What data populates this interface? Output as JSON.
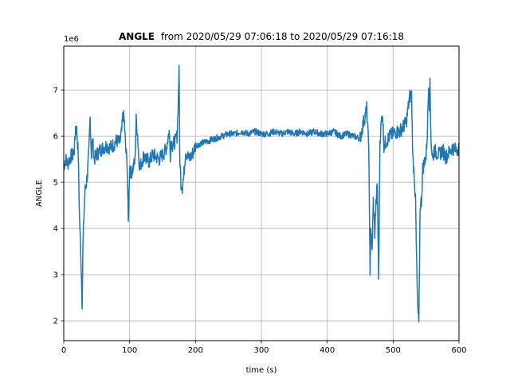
{
  "chart_data": {
    "type": "line",
    "title": {
      "bold": "ANGLE",
      "rest": "from 2020/05/29 07:06:18 to 2020/05/29 07:16:18"
    },
    "xlabel": "time (s)",
    "ylabel": "ANGLE",
    "offset_label": "1e6",
    "xlim": [
      0,
      600
    ],
    "ylim": [
      1.57,
      7.95
    ],
    "x_ticks": [
      0,
      100,
      200,
      300,
      400,
      500,
      600
    ],
    "x_tick_labels": [
      "0",
      "100",
      "200",
      "300",
      "400",
      "500",
      "600"
    ],
    "y_ticks": [
      2,
      3,
      4,
      5,
      6,
      7
    ],
    "y_tick_labels": [
      "2",
      "3",
      "4",
      "5",
      "6",
      "7"
    ],
    "grid": true,
    "series": [
      {
        "color": "#1f77b4",
        "x": [
          0,
          3,
          6,
          10,
          14,
          16,
          18,
          20,
          22,
          24,
          26,
          27,
          28,
          29,
          30,
          31,
          32,
          34,
          36,
          38,
          40,
          42,
          43,
          44,
          46,
          48,
          50,
          55,
          60,
          65,
          70,
          75,
          80,
          85,
          88,
          90,
          92,
          94,
          96,
          98,
          100,
          102,
          105,
          108,
          110,
          112,
          114,
          116,
          118,
          120,
          122,
          125,
          130,
          135,
          140,
          145,
          150,
          155,
          160,
          162,
          163,
          165,
          167,
          170,
          172,
          174,
          175,
          176,
          178,
          180,
          182,
          185,
          190,
          195,
          200,
          210,
          220,
          230,
          240,
          250,
          260,
          270,
          280,
          290,
          300,
          310,
          320,
          330,
          340,
          350,
          360,
          370,
          380,
          390,
          400,
          410,
          420,
          430,
          440,
          450,
          455,
          460,
          462,
          463,
          464,
          465,
          466,
          468,
          470,
          472,
          474,
          476,
          478,
          480,
          482,
          484,
          486,
          488,
          490,
          495,
          500,
          505,
          510,
          515,
          520,
          525,
          528,
          530,
          532,
          534,
          535,
          537,
          539,
          541,
          543,
          545,
          547,
          548,
          550,
          552,
          554,
          555,
          556,
          557,
          558,
          560,
          562,
          565,
          570,
          575,
          580,
          585,
          590,
          595,
          600
        ],
        "values": [
          5.35,
          5.5,
          5.4,
          5.55,
          5.6,
          5.7,
          6.2,
          6.1,
          5.6,
          4.2,
          3.4,
          2.9,
          2.4,
          3.5,
          4.0,
          4.4,
          4.8,
          4.95,
          5.2,
          5.6,
          6.4,
          5.6,
          5.8,
          5.9,
          5.5,
          5.55,
          5.6,
          5.7,
          5.75,
          5.8,
          5.75,
          5.8,
          5.9,
          5.85,
          6.1,
          6.5,
          6.3,
          5.7,
          5.5,
          4.1,
          5.4,
          5.2,
          5.3,
          5.45,
          6.35,
          6.05,
          5.5,
          5.3,
          5.45,
          5.5,
          5.6,
          5.5,
          5.45,
          5.6,
          5.55,
          5.5,
          5.6,
          5.7,
          6.1,
          5.6,
          5.9,
          5.8,
          5.85,
          5.9,
          6.0,
          6.8,
          7.6,
          5.6,
          5.0,
          4.9,
          5.1,
          5.7,
          5.5,
          5.6,
          5.8,
          5.85,
          5.9,
          5.95,
          6.0,
          6.05,
          6.05,
          6.1,
          6.05,
          6.1,
          6.05,
          6.05,
          6.1,
          6.05,
          6.1,
          6.05,
          6.1,
          6.05,
          6.1,
          6.05,
          6.05,
          6.1,
          6.0,
          6.05,
          6.0,
          5.95,
          6.3,
          6.6,
          6.0,
          5.9,
          4.2,
          3.1,
          4.0,
          3.5,
          4.6,
          3.9,
          4.5,
          5.0,
          2.9,
          5.9,
          6.3,
          6.5,
          5.8,
          5.85,
          5.9,
          6.0,
          6.05,
          6.1,
          6.1,
          6.2,
          6.3,
          6.85,
          6.9,
          5.5,
          5.2,
          4.6,
          3.7,
          2.4,
          1.9,
          4.5,
          4.6,
          5.3,
          5.4,
          5.5,
          5.55,
          6.1,
          7.2,
          6.7,
          7.1,
          6.2,
          5.8,
          5.5,
          5.7,
          5.65,
          5.6,
          5.7,
          5.55,
          5.65,
          5.75,
          5.7,
          5.75
        ]
      }
    ]
  }
}
